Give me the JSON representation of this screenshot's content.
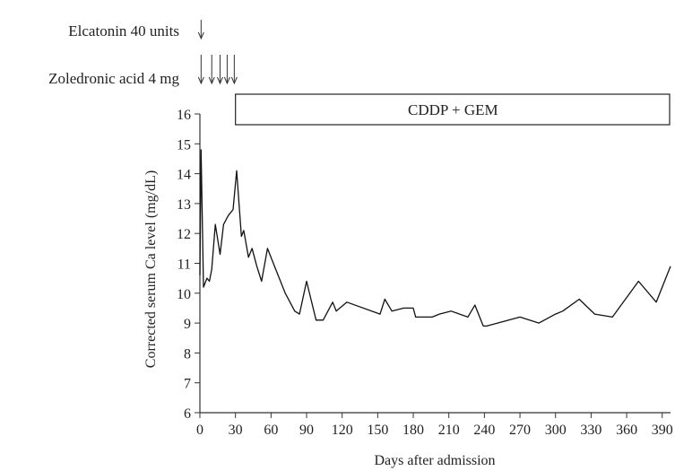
{
  "chart_data": {
    "type": "line",
    "title": "",
    "xlabel": "Days after admission",
    "ylabel": "Corrected serum Ca level (mg/dL)",
    "xlim": [
      0,
      397
    ],
    "ylim": [
      6,
      16
    ],
    "xticks": [
      0,
      30,
      60,
      90,
      120,
      150,
      180,
      210,
      240,
      270,
      300,
      330,
      360,
      390
    ],
    "yticks": [
      6,
      7,
      8,
      9,
      10,
      11,
      12,
      13,
      14,
      15,
      16
    ],
    "grid": false,
    "line_color": "#111111",
    "series": [
      {
        "x": [
          0,
          1,
          3,
          6,
          8,
          10,
          13,
          17,
          20,
          24,
          28,
          31,
          35,
          37,
          41,
          44,
          48,
          52,
          57,
          64,
          72,
          80,
          84,
          90,
          98,
          104,
          112,
          115,
          118,
          124,
          152,
          156,
          162,
          172,
          180,
          182,
          188,
          196,
          202,
          212,
          226,
          232,
          239,
          242,
          270,
          286,
          300,
          306,
          320,
          333,
          348,
          370,
          385,
          397
        ],
        "y": [
          10.6,
          14.8,
          10.2,
          10.5,
          10.4,
          10.8,
          12.3,
          11.3,
          12.3,
          12.6,
          12.8,
          14.1,
          11.9,
          12.1,
          11.2,
          11.5,
          10.9,
          10.4,
          11.5,
          10.8,
          10.0,
          9.4,
          9.3,
          10.4,
          9.1,
          9.1,
          9.7,
          9.4,
          9.5,
          9.7,
          9.3,
          9.8,
          9.4,
          9.5,
          9.5,
          9.2,
          9.2,
          9.2,
          9.3,
          9.4,
          9.2,
          9.6,
          8.9,
          8.9,
          9.2,
          9.0,
          9.3,
          9.4,
          9.8,
          9.3,
          9.2,
          10.4,
          9.7,
          10.9
        ]
      }
    ],
    "annotations": {
      "treatment_bar": {
        "label": "CDDP + GEM",
        "start_day": 30,
        "end_day": 397
      },
      "drugs": [
        {
          "label": "Elcatonin 40 units",
          "days": [
            1
          ]
        },
        {
          "label": "Zoledronic acid 4 mg",
          "days": [
            1,
            10,
            17,
            23,
            29
          ]
        }
      ]
    }
  }
}
